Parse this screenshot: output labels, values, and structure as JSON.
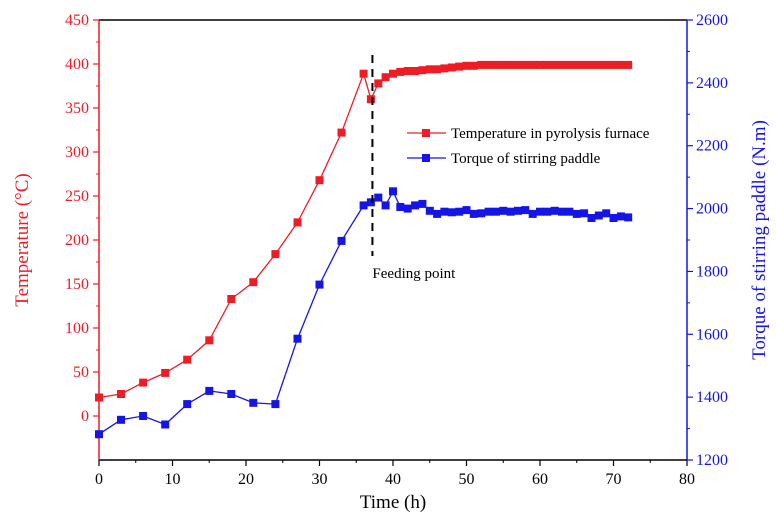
{
  "chart_data": {
    "type": "line",
    "xlabel": "Time (h)",
    "ylabel_left": "Temperature (°C)",
    "ylabel_right": "Torque of stirring paddle (N.m)",
    "xlim": [
      0,
      80
    ],
    "ylim_left": [
      -50,
      450
    ],
    "ylim_right": [
      1200,
      2600
    ],
    "x_ticks": [
      "0",
      "10",
      "20",
      "30",
      "40",
      "50",
      "60",
      "70",
      "80"
    ],
    "y_left_ticks": [
      "0",
      "50",
      "100",
      "150",
      "200",
      "250",
      "300",
      "350",
      "400",
      "450"
    ],
    "y_right_ticks": [
      "1200",
      "1400",
      "1600",
      "1800",
      "2000",
      "2200",
      "2400",
      "2600"
    ],
    "legend_position": "upper-right",
    "grid": false,
    "colors": {
      "temperature": "#ee1c25",
      "torque": "#1515e6",
      "annotation": "#000000"
    },
    "annotation": {
      "label": "Feeding point",
      "x": 37.2
    },
    "series": [
      {
        "name": "Temperature in pyrolysis furnace",
        "axis": "left",
        "x": [
          0,
          3,
          6,
          9,
          12,
          15,
          18,
          21,
          24,
          27,
          30,
          33,
          36,
          37,
          38,
          39,
          40,
          41,
          42,
          43,
          44,
          45,
          46,
          47,
          48,
          49,
          50,
          51,
          52,
          53,
          54,
          55,
          56,
          57,
          58,
          59,
          60,
          61,
          62,
          63,
          64,
          65,
          66,
          67,
          68,
          69,
          70,
          71,
          72
        ],
        "values": [
          21,
          25,
          38,
          49,
          64,
          86,
          133,
          152,
          184,
          220,
          268,
          322,
          389,
          360,
          378,
          385,
          389,
          391,
          392,
          392,
          393,
          394,
          394,
          395,
          396,
          397,
          398,
          398,
          399,
          399,
          399,
          399,
          399,
          399,
          399,
          399,
          399,
          399,
          399,
          399,
          399,
          399,
          399,
          399,
          399,
          399,
          399,
          399,
          399
        ]
      },
      {
        "name": "Torque of stirring paddle",
        "axis": "right",
        "x": [
          0,
          3,
          6,
          9,
          12,
          15,
          18,
          21,
          24,
          27,
          30,
          33,
          36,
          37,
          38,
          39,
          40,
          41,
          42,
          43,
          44,
          45,
          46,
          47,
          48,
          49,
          50,
          51,
          52,
          53,
          54,
          55,
          56,
          57,
          58,
          59,
          60,
          61,
          62,
          63,
          64,
          65,
          66,
          67,
          68,
          69,
          70,
          71,
          72
        ],
        "values": [
          1282,
          1328,
          1340,
          1313,
          1378,
          1420,
          1410,
          1382,
          1378,
          1586,
          1758,
          1897,
          2010,
          2020,
          2035,
          2010,
          2055,
          2005,
          2000,
          2010,
          2015,
          1993,
          1983,
          1990,
          1988,
          1990,
          1995,
          1983,
          1985,
          1990,
          1990,
          1993,
          1990,
          1993,
          1995,
          1983,
          1990,
          1990,
          1993,
          1990,
          1990,
          1983,
          1985,
          1970,
          1978,
          1985,
          1970,
          1975,
          1972
        ]
      }
    ]
  }
}
